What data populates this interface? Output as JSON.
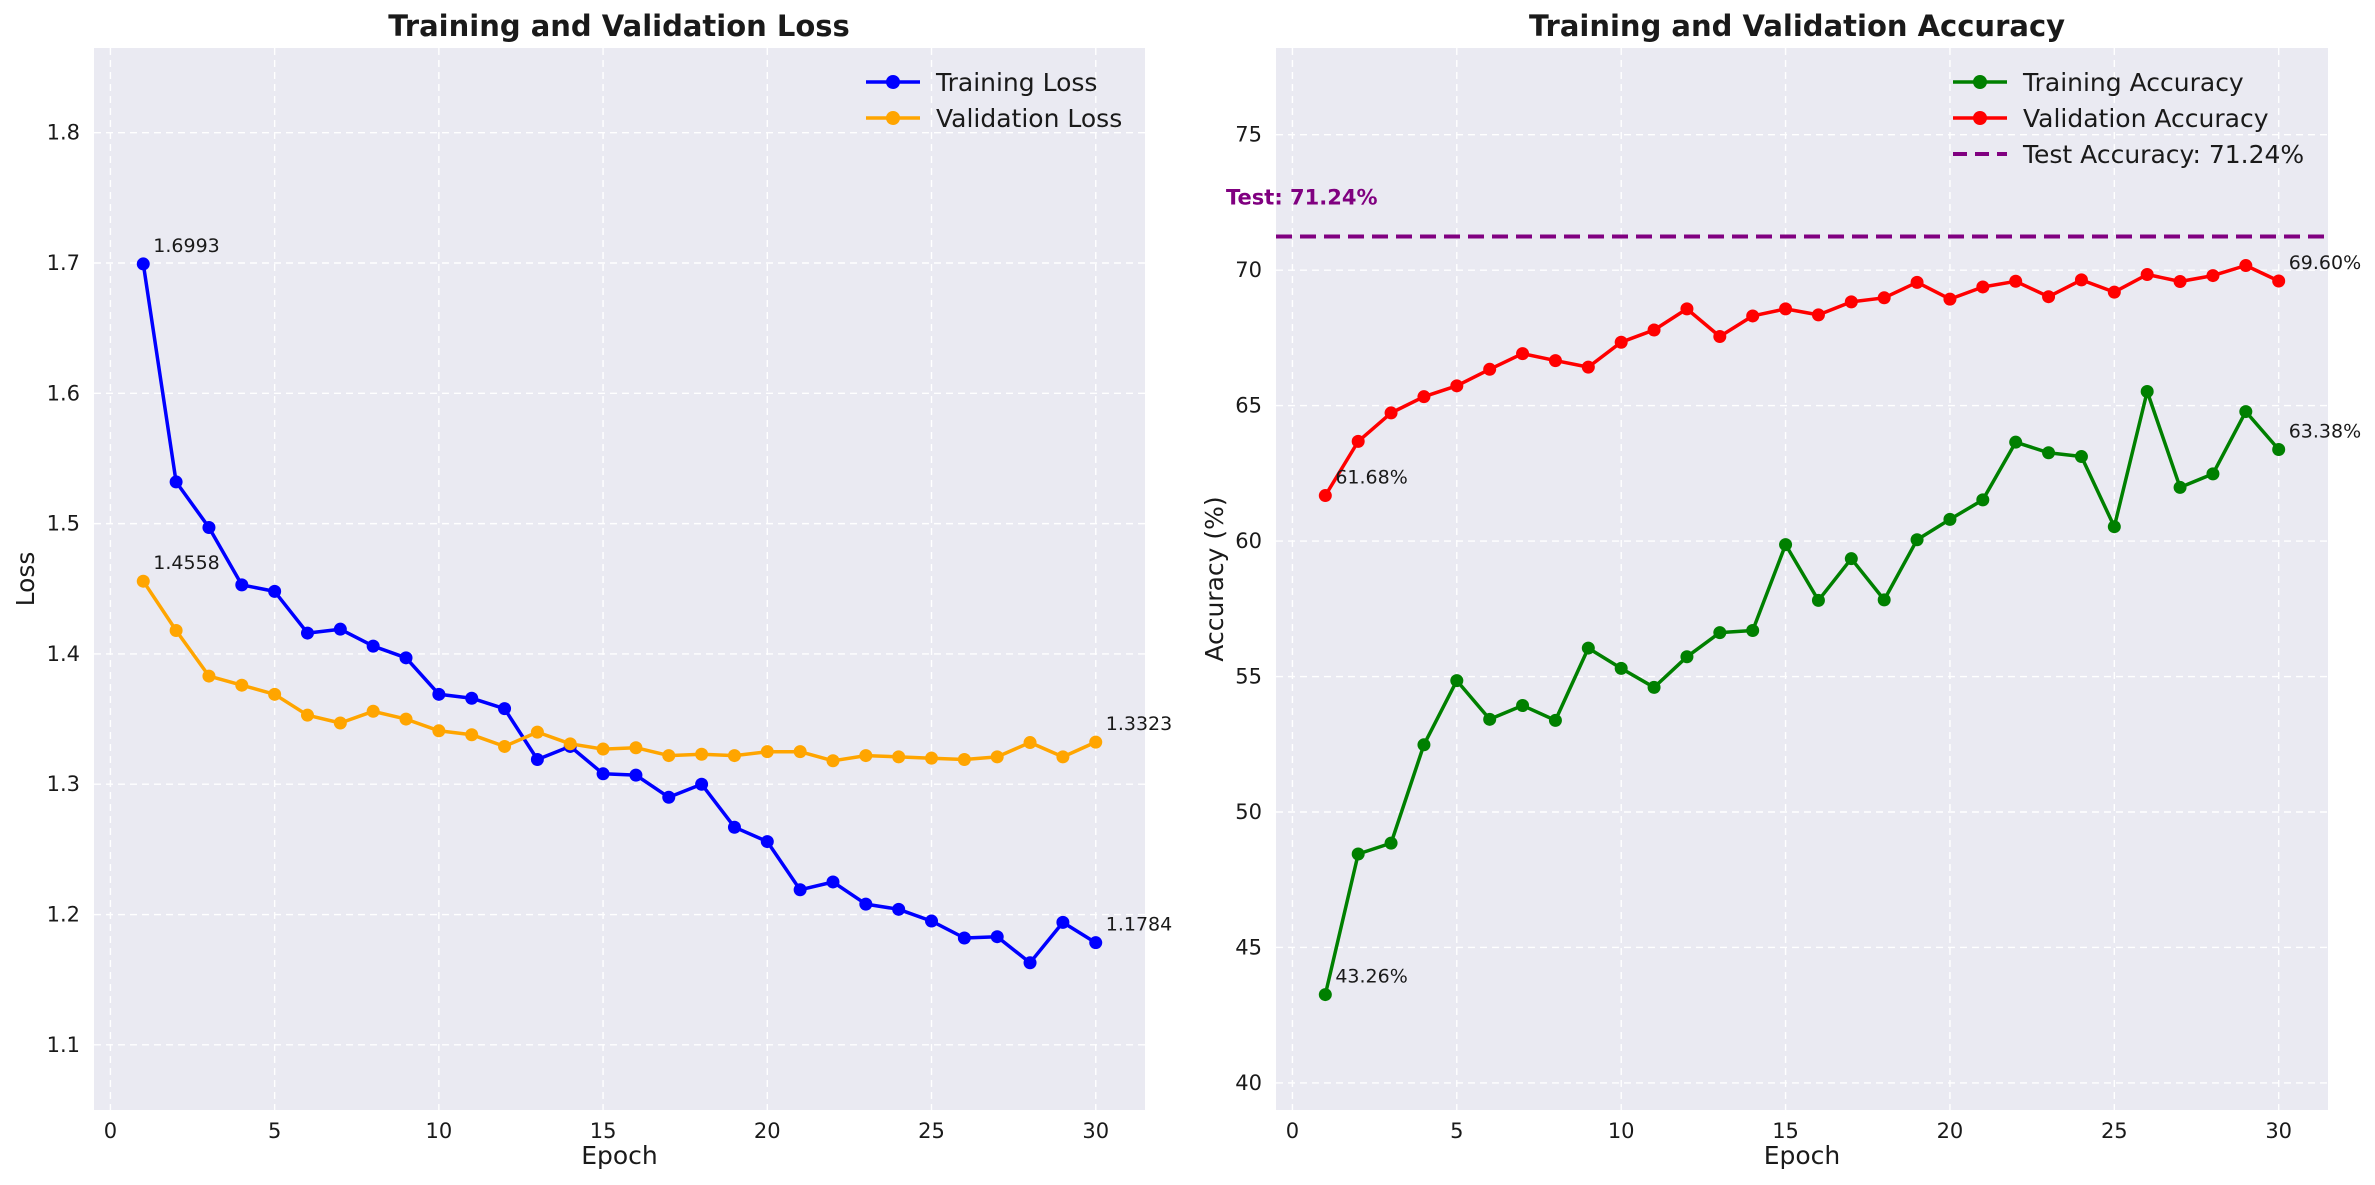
{
  "chart_data": [
    {
      "type": "line",
      "title": "Training and Validation Loss",
      "xlabel": "Epoch",
      "ylabel": "Loss",
      "xlim": [
        -0.5,
        31.5
      ],
      "ylim": [
        1.05,
        1.865
      ],
      "xticks": [
        0,
        5,
        10,
        15,
        20,
        25,
        30
      ],
      "yticks": [
        1.1,
        1.2,
        1.3,
        1.4,
        1.5,
        1.6,
        1.7,
        1.8
      ],
      "grid": true,
      "legend": "top-right",
      "x": [
        1,
        2,
        3,
        4,
        5,
        6,
        7,
        8,
        9,
        10,
        11,
        12,
        13,
        14,
        15,
        16,
        17,
        18,
        19,
        20,
        21,
        22,
        23,
        24,
        25,
        26,
        27,
        28,
        29,
        30
      ],
      "series": [
        {
          "name": "Training Loss",
          "color": "#0000ff",
          "values": [
            1.6993,
            1.532,
            1.497,
            1.453,
            1.448,
            1.416,
            1.419,
            1.406,
            1.397,
            1.369,
            1.366,
            1.358,
            1.319,
            1.329,
            1.308,
            1.307,
            1.29,
            1.3,
            1.267,
            1.256,
            1.219,
            1.225,
            1.208,
            1.204,
            1.195,
            1.182,
            1.183,
            1.163,
            1.194,
            1.1784
          ]
        },
        {
          "name": "Validation Loss",
          "color": "#ffa500",
          "values": [
            1.4558,
            1.418,
            1.383,
            1.376,
            1.369,
            1.353,
            1.347,
            1.356,
            1.35,
            1.341,
            1.338,
            1.329,
            1.34,
            1.331,
            1.327,
            1.328,
            1.322,
            1.323,
            1.322,
            1.325,
            1.325,
            1.318,
            1.322,
            1.321,
            1.32,
            1.319,
            1.321,
            1.332,
            1.321,
            1.3323
          ]
        }
      ],
      "annotations": [
        {
          "series": 0,
          "index": 0,
          "text": "1.6993"
        },
        {
          "series": 0,
          "index": 29,
          "text": "1.1784"
        },
        {
          "series": 1,
          "index": 0,
          "text": "1.4558"
        },
        {
          "series": 1,
          "index": 29,
          "text": "1.3323"
        }
      ]
    },
    {
      "type": "line",
      "title": "Training and Validation Accuracy",
      "xlabel": "Epoch",
      "ylabel": "Accuracy (%)",
      "xlim": [
        -0.5,
        31.5
      ],
      "ylim": [
        39.0,
        78.2
      ],
      "xticks": [
        0,
        5,
        10,
        15,
        20,
        25,
        30
      ],
      "yticks": [
        40,
        45,
        50,
        55,
        60,
        65,
        70,
        75
      ],
      "grid": true,
      "legend": "top-right",
      "x": [
        1,
        2,
        3,
        4,
        5,
        6,
        7,
        8,
        9,
        10,
        11,
        12,
        13,
        14,
        15,
        16,
        17,
        18,
        19,
        20,
        21,
        22,
        23,
        24,
        25,
        26,
        27,
        28,
        29,
        30
      ],
      "series": [
        {
          "name": "Training Accuracy",
          "color": "#008000",
          "values": [
            43.26,
            48.45,
            48.85,
            52.48,
            54.85,
            53.42,
            53.93,
            53.38,
            56.05,
            55.3,
            54.6,
            55.73,
            56.62,
            56.7,
            59.87,
            57.81,
            59.35,
            57.83,
            60.05,
            60.8,
            61.52,
            63.65,
            63.26,
            63.12,
            60.53,
            65.52,
            61.98,
            62.48,
            64.78,
            63.38
          ]
        },
        {
          "name": "Validation Accuracy",
          "color": "#ff0000",
          "values": [
            61.68,
            63.68,
            64.73,
            65.33,
            65.73,
            66.34,
            66.92,
            66.66,
            66.42,
            67.34,
            67.79,
            68.57,
            67.55,
            68.31,
            68.57,
            68.35,
            68.83,
            68.98,
            69.55,
            68.93,
            69.38,
            69.59,
            69.02,
            69.64,
            69.19,
            69.84,
            69.58,
            69.8,
            70.17,
            69.6
          ]
        }
      ],
      "reference_line": {
        "name": "Test Accuracy: 71.24%",
        "value": 71.24,
        "color": "#800080",
        "style": "dashed",
        "label": "Test: 71.24%"
      },
      "annotations": [
        {
          "series": 0,
          "index": 0,
          "text": "43.26%"
        },
        {
          "series": 0,
          "index": 29,
          "text": "63.38%"
        },
        {
          "series": 1,
          "index": 0,
          "text": "61.68%"
        },
        {
          "series": 1,
          "index": 29,
          "text": "69.60%"
        }
      ]
    }
  ]
}
